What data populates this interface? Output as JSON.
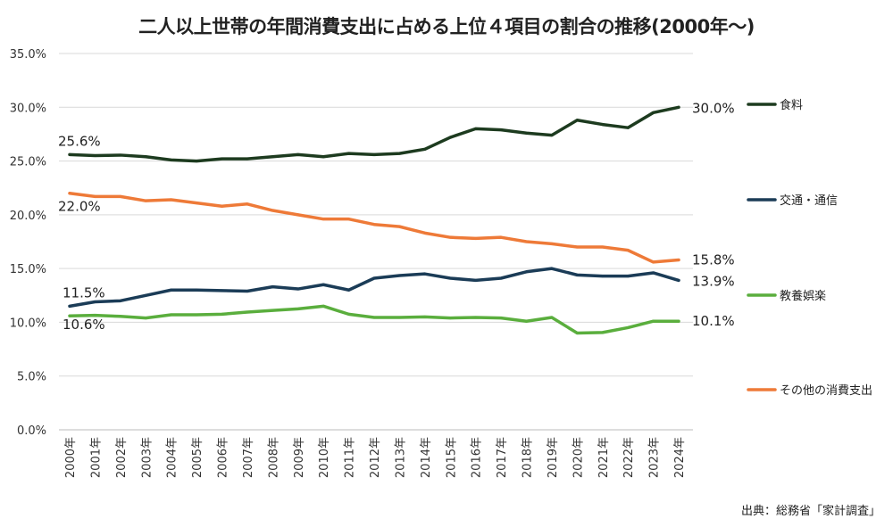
{
  "title": "二人以上世帯の年間消費支出に占める上位４項目の割合の推移(2000年～)",
  "source": "出典：総務省「家計調査」",
  "chart_data": {
    "type": "line",
    "title": "二人以上世帯の年間消費支出に占める上位４項目の割合の推移(2000年～)",
    "xlabel": "",
    "ylabel": "",
    "ylim": [
      0,
      35
    ],
    "yticks": [
      "0.0%",
      "5.0%",
      "10.0%",
      "15.0%",
      "20.0%",
      "25.0%",
      "30.0%",
      "35.0%"
    ],
    "grid": true,
    "legend_position": "right",
    "categories": [
      "2000年",
      "2001年",
      "2002年",
      "2003年",
      "2004年",
      "2005年",
      "2006年",
      "2007年",
      "2008年",
      "2009年",
      "2010年",
      "2011年",
      "2012年",
      "2013年",
      "2014年",
      "2015年",
      "2016年",
      "2017年",
      "2018年",
      "2019年",
      "2020年",
      "2021年",
      "2022年",
      "2023年",
      "2024年"
    ],
    "series": [
      {
        "name": "食料",
        "color": "#1d3b1f",
        "values": [
          25.6,
          25.5,
          25.55,
          25.4,
          25.1,
          25.0,
          25.2,
          25.2,
          25.4,
          25.6,
          25.4,
          25.7,
          25.6,
          25.7,
          26.1,
          27.2,
          28.0,
          27.9,
          27.6,
          27.4,
          28.8,
          28.4,
          28.1,
          29.5,
          30.0
        ],
        "start_label": "25.6%",
        "end_label": "30.0%"
      },
      {
        "name": "交通・通信",
        "color": "#1b3c57",
        "values": [
          11.5,
          11.9,
          12.0,
          12.5,
          13.0,
          13.0,
          12.95,
          12.9,
          13.3,
          13.1,
          13.5,
          13.0,
          14.1,
          14.35,
          14.5,
          14.1,
          13.9,
          14.1,
          14.7,
          15.0,
          14.4,
          14.3,
          14.3,
          14.6,
          13.9
        ],
        "start_label": "11.5%",
        "end_label": "13.9%"
      },
      {
        "name": "教養娯楽",
        "color": "#5aae3d",
        "values": [
          10.6,
          10.65,
          10.55,
          10.4,
          10.7,
          10.7,
          10.75,
          10.95,
          11.1,
          11.25,
          11.5,
          10.75,
          10.45,
          10.45,
          10.5,
          10.4,
          10.45,
          10.4,
          10.1,
          10.45,
          9.0,
          9.05,
          9.5,
          10.1,
          10.1
        ],
        "start_label": "10.6%",
        "end_label": "10.1%"
      },
      {
        "name": "その他の消費支出",
        "color": "#ee7a38",
        "values": [
          22.0,
          21.7,
          21.7,
          21.3,
          21.4,
          21.1,
          20.8,
          21.0,
          20.4,
          20.0,
          19.6,
          19.6,
          19.1,
          18.9,
          18.3,
          17.9,
          17.8,
          17.9,
          17.5,
          17.3,
          17.0,
          17.0,
          16.7,
          15.6,
          15.8
        ],
        "start_label": "22.0%",
        "end_label": "15.8%"
      }
    ]
  }
}
